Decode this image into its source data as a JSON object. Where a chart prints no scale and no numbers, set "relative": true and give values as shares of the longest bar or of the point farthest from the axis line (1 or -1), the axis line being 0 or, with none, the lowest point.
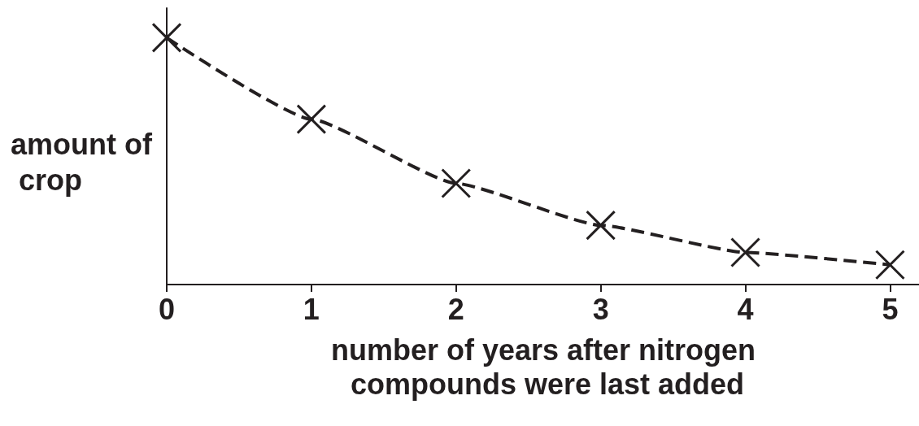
{
  "chart_data": {
    "type": "line",
    "xlabel": "number of years after nitrogen compounds were last added",
    "ylabel": "amount of crop",
    "relative": true,
    "x": [
      0,
      1,
      2,
      3,
      4,
      5
    ],
    "xlim": [
      0,
      5.2
    ],
    "xticks": [
      0,
      1,
      2,
      3,
      4,
      5
    ],
    "series": [
      {
        "color": "#231f20",
        "values": [
          1,
          0.67,
          0.41,
          0.24,
          0.13,
          0.08
        ]
      }
    ],
    "marker": "cross",
    "line_style": "dashed"
  }
}
